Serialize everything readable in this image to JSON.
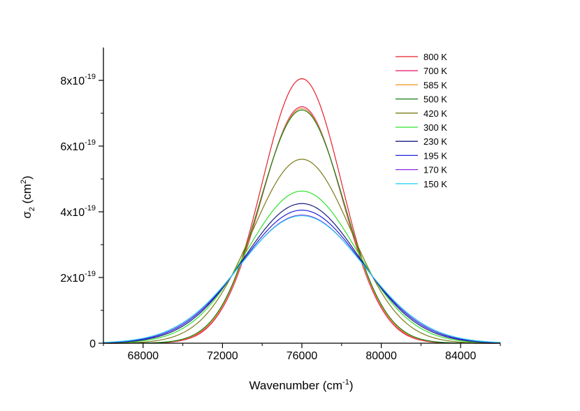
{
  "chart_data": {
    "type": "line",
    "title": "",
    "xlabel": "Wavenumber (cm",
    "xlabel_sup": "-1",
    "xlabel_end": ")",
    "ylabel_sym": "σ",
    "ylabel_sub": "2",
    "ylabel_unit": "(cm",
    "ylabel_sup": "2",
    "ylabel_end": ")",
    "xlim": [
      66000,
      86000
    ],
    "ylim": [
      0,
      9e-19
    ],
    "x_ticks": [
      68000,
      72000,
      76000,
      80000,
      84000
    ],
    "x_tick_labels": [
      "68000",
      "72000",
      "76000",
      "80000",
      "84000"
    ],
    "y_ticks": [
      {
        "value": 0,
        "mantissa": "0",
        "exponent": ""
      },
      {
        "value": 2e-19,
        "mantissa": "2x10",
        "exponent": "-19"
      },
      {
        "value": 4e-19,
        "mantissa": "4x10",
        "exponent": "-19"
      },
      {
        "value": 6e-19,
        "mantissa": "6x10",
        "exponent": "-19"
      },
      {
        "value": 8e-19,
        "mantissa": "8x10",
        "exponent": "-19"
      }
    ],
    "legend_position": "top-right",
    "series": [
      {
        "name": "800 K",
        "color": "#e8202a",
        "center": 76000,
        "peak": 8.05e-19,
        "sigma": 2000
      },
      {
        "name": "700 K",
        "color": "#e8287a",
        "center": 76000,
        "peak": 7.2e-19,
        "sigma": 2050
      },
      {
        "name": "585 K",
        "color": "#f0961e",
        "center": 76000,
        "peak": 7.15e-19,
        "sigma": 2080
      },
      {
        "name": "500 K",
        "color": "#157a15",
        "center": 76000,
        "peak": 7.1e-19,
        "sigma": 2110
      },
      {
        "name": "420 K",
        "color": "#7a7a18",
        "center": 76000,
        "peak": 5.6e-19,
        "sigma": 2500
      },
      {
        "name": "300 K",
        "color": "#2ee02e",
        "center": 76000,
        "peak": 4.63e-19,
        "sigma": 2780
      },
      {
        "name": "230 K",
        "color": "#1a1a80",
        "center": 76000,
        "peak": 4.25e-19,
        "sigma": 2930
      },
      {
        "name": "195 K",
        "color": "#2020dd",
        "center": 76000,
        "peak": 4.05e-19,
        "sigma": 3030
      },
      {
        "name": "170 K",
        "color": "#8a2be2",
        "center": 76000,
        "peak": 3.9e-19,
        "sigma": 3120
      },
      {
        "name": "150 K",
        "color": "#2ad4f5",
        "center": 76000,
        "peak": 3.88e-19,
        "sigma": 3140
      }
    ]
  }
}
